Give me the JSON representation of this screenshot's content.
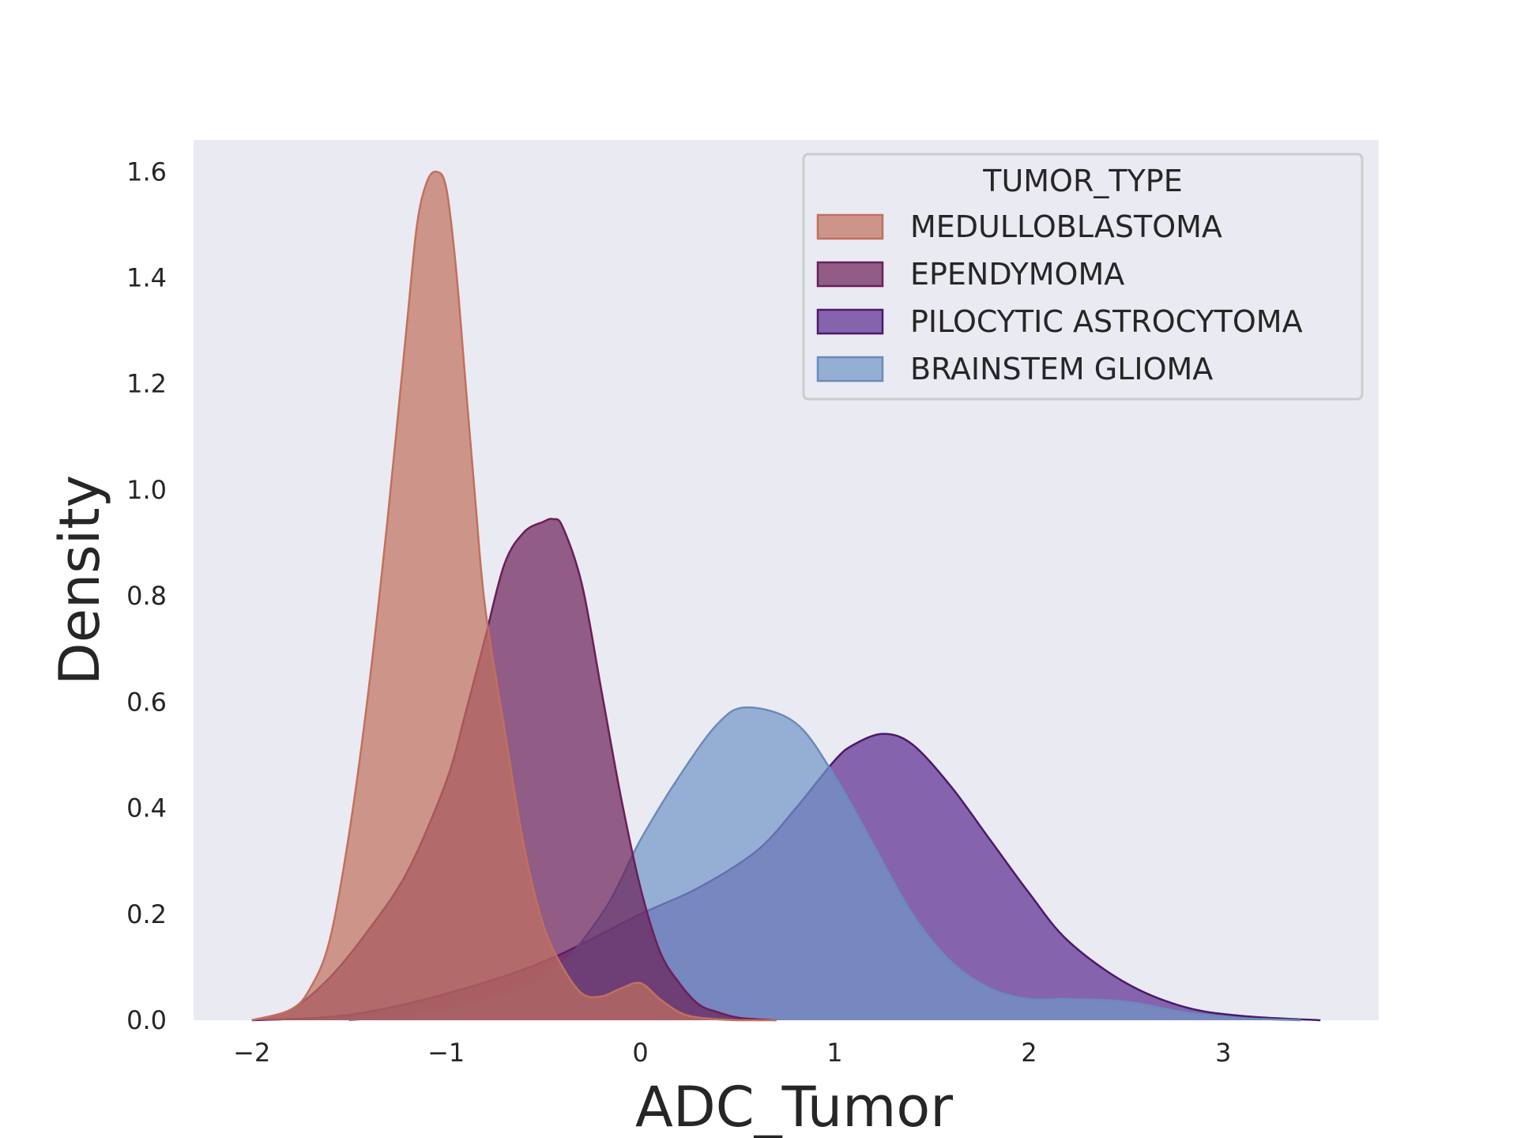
{
  "chart_data": {
    "type": "area",
    "subtype": "kde-density",
    "title": "",
    "xlabel": "ADC_Tumor",
    "ylabel": "Density",
    "xlim": [
      -2.3,
      3.8
    ],
    "ylim": [
      0,
      1.66
    ],
    "x_ticks": [
      -2,
      -1,
      0,
      1,
      2,
      3
    ],
    "x_tick_labels": [
      "−2",
      "−1",
      "0",
      "1",
      "2",
      "3"
    ],
    "y_ticks": [
      0.0,
      0.2,
      0.4,
      0.6,
      0.8,
      1.0,
      1.2,
      1.4,
      1.6
    ],
    "y_tick_labels": [
      "0.0",
      "0.2",
      "0.4",
      "0.6",
      "0.8",
      "1.0",
      "1.2",
      "1.4",
      "1.6"
    ],
    "grid": false,
    "background": "#eaeaf2",
    "legend": {
      "title": "TUMOR_TYPE",
      "placement": "top-right"
    },
    "series": [
      {
        "name": "MEDULLOBLASTOMA",
        "fill": "#c0705e",
        "stroke": "#c0705e",
        "x": [
          -2.0,
          -1.8,
          -1.7,
          -1.6,
          -1.5,
          -1.4,
          -1.3,
          -1.2,
          -1.15,
          -1.1,
          -1.05,
          -1.0,
          -0.95,
          -0.9,
          -0.85,
          -0.8,
          -0.7,
          -0.6,
          -0.5,
          -0.4,
          -0.3,
          -0.2,
          -0.1,
          0.0,
          0.1,
          0.2,
          0.3,
          0.5,
          0.7
        ],
        "values": [
          0.0,
          0.02,
          0.06,
          0.15,
          0.35,
          0.62,
          0.95,
          1.32,
          1.5,
          1.58,
          1.6,
          1.57,
          1.42,
          1.2,
          0.98,
          0.78,
          0.55,
          0.33,
          0.18,
          0.1,
          0.05,
          0.045,
          0.06,
          0.07,
          0.04,
          0.015,
          0.005,
          0.0,
          0.0
        ]
      },
      {
        "name": "EPENDYMOMA",
        "fill": "#6b1f57",
        "stroke": "#6b1f57",
        "x": [
          -2.0,
          -1.8,
          -1.6,
          -1.4,
          -1.2,
          -1.0,
          -0.9,
          -0.8,
          -0.7,
          -0.6,
          -0.5,
          -0.45,
          -0.4,
          -0.3,
          -0.2,
          -0.1,
          0.0,
          0.1,
          0.2,
          0.3,
          0.4,
          0.5,
          0.6,
          0.7
        ],
        "values": [
          0.0,
          0.02,
          0.08,
          0.17,
          0.28,
          0.45,
          0.58,
          0.72,
          0.86,
          0.92,
          0.94,
          0.945,
          0.93,
          0.82,
          0.62,
          0.42,
          0.25,
          0.13,
          0.07,
          0.03,
          0.015,
          0.005,
          0.002,
          0.0
        ]
      },
      {
        "name": "PILOCYTIC ASTROCYTOMA",
        "fill": "#5a2b90",
        "stroke": "#4a1a6e",
        "x": [
          -2.0,
          -1.5,
          -1.0,
          -0.5,
          0.0,
          0.3,
          0.6,
          0.8,
          1.0,
          1.1,
          1.25,
          1.4,
          1.6,
          1.8,
          2.0,
          2.2,
          2.5,
          2.8,
          3.1,
          3.5
        ],
        "values": [
          0.0,
          0.01,
          0.05,
          0.11,
          0.2,
          0.25,
          0.32,
          0.4,
          0.49,
          0.52,
          0.54,
          0.52,
          0.44,
          0.34,
          0.24,
          0.15,
          0.07,
          0.025,
          0.008,
          0.0
        ]
      },
      {
        "name": "BRAINSTEM GLIOMA",
        "fill": "#7195c8",
        "stroke": "#6a8bbb",
        "x": [
          -1.5,
          -1.0,
          -0.5,
          -0.2,
          0.0,
          0.2,
          0.4,
          0.55,
          0.8,
          1.0,
          1.2,
          1.4,
          1.6,
          1.8,
          2.0,
          2.2,
          2.5,
          2.8,
          3.1,
          3.4
        ],
        "values": [
          0.0,
          0.02,
          0.08,
          0.2,
          0.34,
          0.46,
          0.56,
          0.59,
          0.56,
          0.46,
          0.33,
          0.2,
          0.11,
          0.06,
          0.04,
          0.04,
          0.035,
          0.015,
          0.004,
          0.0
        ]
      }
    ],
    "draw_order": [
      "PILOCYTIC ASTROCYTOMA",
      "BRAINSTEM GLIOMA",
      "EPENDYMOMA",
      "MEDULLOBLASTOMA"
    ]
  }
}
